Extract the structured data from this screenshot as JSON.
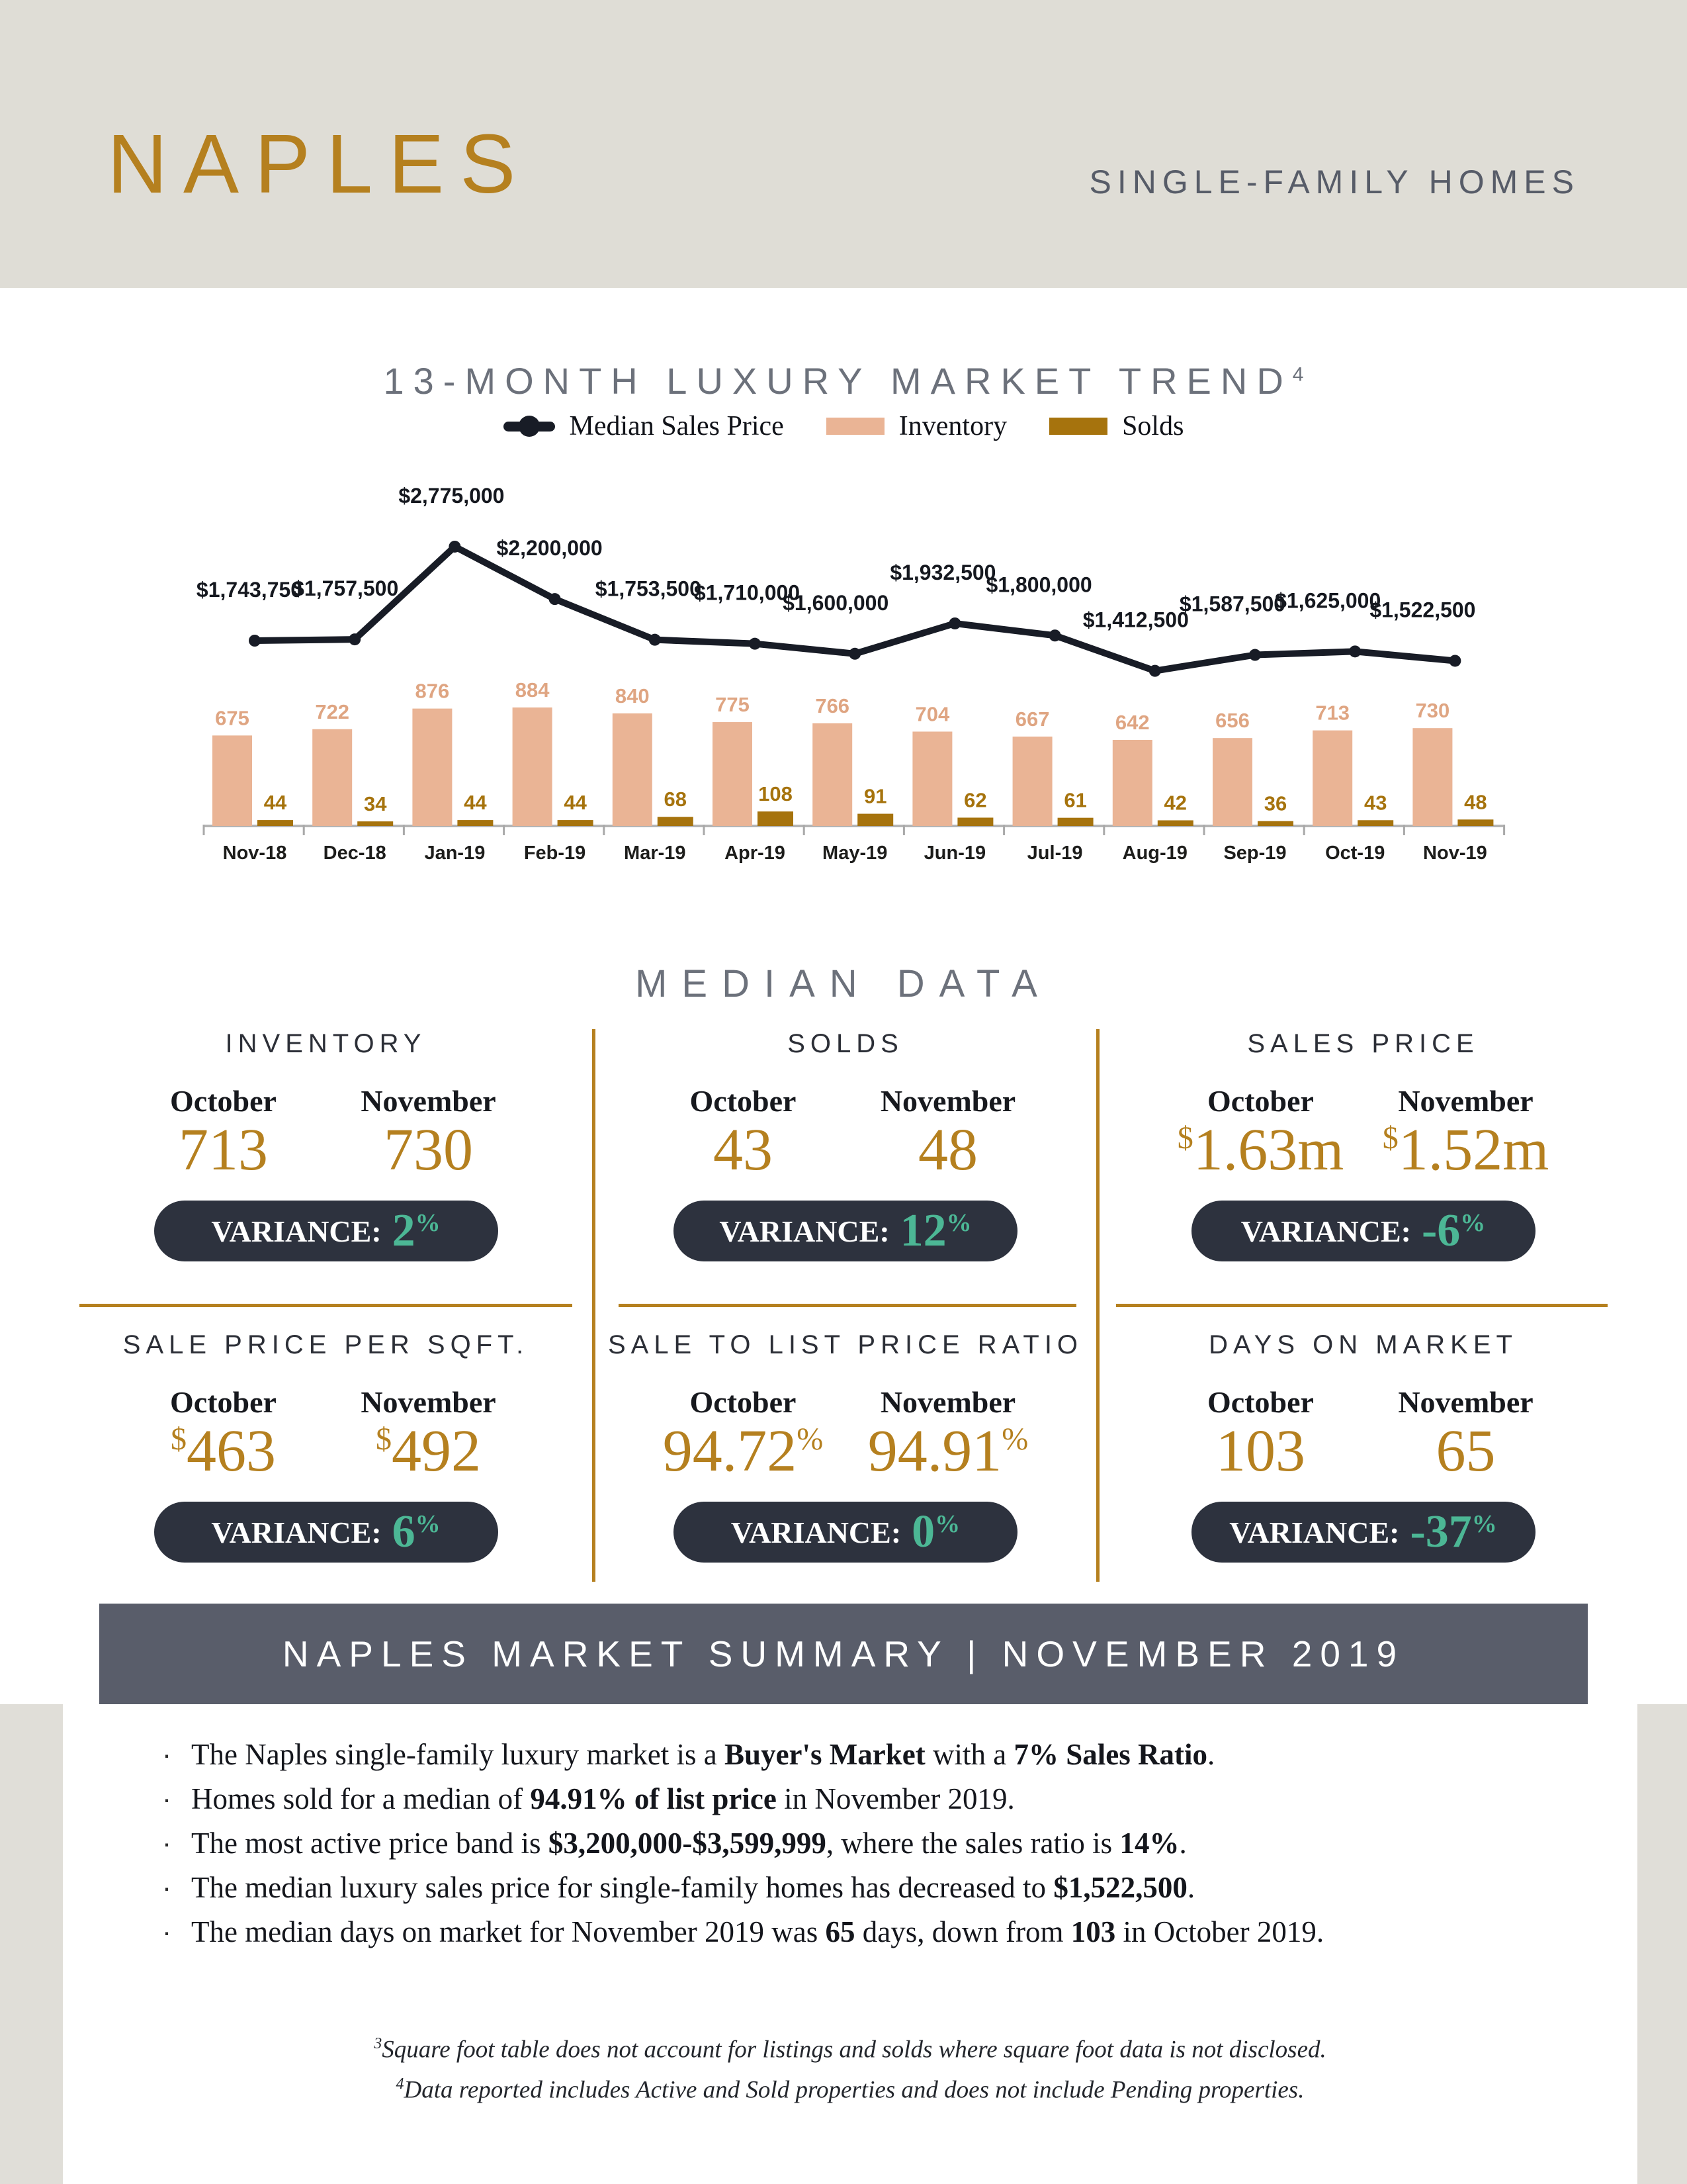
{
  "header": {
    "logo": "NAPLES",
    "subtitle": "SINGLE-FAMILY HOMES"
  },
  "chart_section": {
    "title": "13-MONTH LUXURY MARKET TREND",
    "title_sup": "4",
    "legend": [
      {
        "label": "Median Sales Price",
        "marker": "line-dot-marker",
        "color": "#181c26"
      },
      {
        "label": "Inventory",
        "marker": "bar-swatch",
        "color": "#eab495"
      },
      {
        "label": "Solds",
        "marker": "bar-swatch",
        "color": "#a6730d"
      }
    ]
  },
  "chart_data": {
    "type": "combo",
    "title": "13-MONTH LUXURY MARKET TREND",
    "categories": [
      "Nov-18",
      "Dec-18",
      "Jan-19",
      "Feb-19",
      "Mar-19",
      "Apr-19",
      "May-19",
      "Jun-19",
      "Jul-19",
      "Aug-19",
      "Sep-19",
      "Oct-19",
      "Nov-19"
    ],
    "series": [
      {
        "name": "Median Sales Price",
        "type": "line",
        "values": [
          1743750,
          1757500,
          2775000,
          2200000,
          1753500,
          1710000,
          1600000,
          1932500,
          1800000,
          1412500,
          1587500,
          1625000,
          1522500
        ],
        "labels": [
          "$1,743,750",
          "$1,757,500",
          "$2,775,000",
          "$2,200,000",
          "$1,753,500",
          "$1,710,000",
          "$1,600,000",
          "$1,932,500",
          "$1,800,000",
          "$1,412,500",
          "$1,587,500",
          "$1,625,000",
          "$1,522,500"
        ]
      },
      {
        "name": "Inventory",
        "type": "bar",
        "values": [
          675,
          722,
          876,
          884,
          840,
          775,
          766,
          704,
          667,
          642,
          656,
          713,
          730
        ]
      },
      {
        "name": "Solds",
        "type": "bar",
        "values": [
          44,
          34,
          44,
          44,
          68,
          108,
          91,
          62,
          61,
          42,
          36,
          43,
          48
        ]
      }
    ],
    "xlabel": "",
    "ylabel": "",
    "legend_position": "top",
    "grid": false
  },
  "median_section": {
    "title": "MEDIAN DATA",
    "month_labels": [
      "October",
      "November"
    ],
    "panels": [
      {
        "title": "INVENTORY",
        "october": {
          "main": "713"
        },
        "november": {
          "main": "730"
        },
        "variance": {
          "label": "VARIANCE:",
          "value": "2",
          "sup": "%"
        }
      },
      {
        "title": "SOLDS",
        "october": {
          "main": "43"
        },
        "november": {
          "main": "48"
        },
        "variance": {
          "label": "VARIANCE:",
          "value": "12",
          "sup": "%"
        }
      },
      {
        "title": "SALES PRICE",
        "october": {
          "sup_prefix": "$",
          "main": "1.63",
          "suffix": "m"
        },
        "november": {
          "sup_prefix": "$",
          "main": "1.52",
          "suffix": "m"
        },
        "variance": {
          "label": "VARIANCE:",
          "value": "-6",
          "sup": "%"
        }
      },
      {
        "title": "SALE PRICE PER SQFT.",
        "october": {
          "sup_prefix": "$",
          "main": "463"
        },
        "november": {
          "sup_prefix": "$",
          "main": "492"
        },
        "variance": {
          "label": "VARIANCE:",
          "value": "6",
          "sup": "%"
        }
      },
      {
        "title": "SALE TO LIST PRICE RATIO",
        "october": {
          "main": "94.72",
          "sup_suffix": "%"
        },
        "november": {
          "main": "94.91",
          "sup_suffix": "%"
        },
        "variance": {
          "label": "VARIANCE:",
          "value": "0",
          "sup": "%"
        }
      },
      {
        "title": "DAYS ON MARKET",
        "october": {
          "main": "103"
        },
        "november": {
          "main": "65"
        },
        "variance": {
          "label": "VARIANCE:",
          "value": "-37",
          "sup": "%"
        }
      }
    ]
  },
  "summary": {
    "banner": "NAPLES MARKET SUMMARY | NOVEMBER 2019",
    "bullets": [
      [
        {
          "t": "The Naples single-family luxury market is a ",
          "b": false
        },
        {
          "t": "Buyer's Market",
          "b": true
        },
        {
          "t": " with a ",
          "b": false
        },
        {
          "t": "7% Sales Ratio",
          "b": true
        },
        {
          "t": ".",
          "b": false
        }
      ],
      [
        {
          "t": "Homes sold for a median of ",
          "b": false
        },
        {
          "t": "94.91% of list price",
          "b": true
        },
        {
          "t": " in November 2019.",
          "b": false
        }
      ],
      [
        {
          "t": "The most active price band is ",
          "b": false
        },
        {
          "t": "$3,200,000-$3,599,999",
          "b": true
        },
        {
          "t": ", where the sales ratio is ",
          "b": false
        },
        {
          "t": "14%",
          "b": true
        },
        {
          "t": ".",
          "b": false
        }
      ],
      [
        {
          "t": "The median luxury sales price for single-family homes has decreased to ",
          "b": false
        },
        {
          "t": "$1,522,500",
          "b": true
        },
        {
          "t": ".",
          "b": false
        }
      ],
      [
        {
          "t": "The median days on market for November 2019 was ",
          "b": false
        },
        {
          "t": "65",
          "b": true
        },
        {
          "t": " days, down from ",
          "b": false
        },
        {
          "t": "103",
          "b": true
        },
        {
          "t": " in October 2019.",
          "b": false
        }
      ]
    ]
  },
  "footnotes": [
    {
      "sup": "3",
      "text": "Square foot table does not account for listings and solds where square foot data is not disclosed."
    },
    {
      "sup": "4",
      "text": "Data reported includes Active and Sold properties and does not include Pending properties."
    }
  ],
  "colors": {
    "header_bg": "#dfddd6",
    "logo_gold": "#b5801f",
    "slate_text": "#575c68",
    "title_gray": "#6c717b",
    "line_dark": "#181c26",
    "inventory_peach": "#eab495",
    "inventory_label": "#dfa582",
    "solds_gold": "#a6730d",
    "value_gold": "#b5801f",
    "pill_bg": "#2d323e",
    "variance_teal": "#4cb795",
    "banner_bg": "#595d6a",
    "section_gray_bg": "#e0ded8",
    "divider_gold": "#b5801f"
  }
}
